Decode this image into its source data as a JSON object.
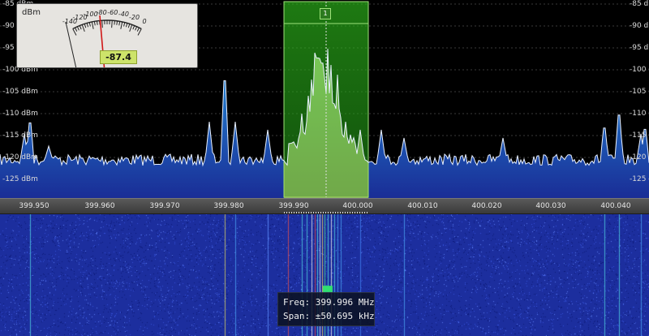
{
  "spectrum": {
    "unit": "dBm",
    "level_labels": [
      "-85 dBm",
      "-90 dBm",
      "-95 dBm",
      "-100 dBm",
      "-105 dBm",
      "-110 dBm",
      "-115 dBm",
      "-120 dBm",
      "-125 dBm"
    ],
    "freq_labels": [
      "399.950",
      "399.960",
      "399.970",
      "399.980",
      "399.990",
      "400.000",
      "400.010",
      "400.020",
      "400.030",
      "400.040"
    ]
  },
  "meter": {
    "unit": "dBm",
    "scale": [
      "-140",
      "-120",
      "-100",
      "-80",
      "-60",
      "-40",
      "-20",
      "0"
    ],
    "value": "-87.4"
  },
  "vfo": {
    "id": "1",
    "selection_color": "#29b51c"
  },
  "readout": {
    "freq_label": "Freq:",
    "freq_value": "399.996 MHz",
    "span_label": "Span:",
    "span_value": "±50.695 kHz"
  },
  "colors": {
    "trace": "#e8f0ff",
    "fill_top": "#2a8bd8",
    "fill_bottom": "#1e2f9a",
    "waterfall_bg": "#1c2e9e"
  }
}
